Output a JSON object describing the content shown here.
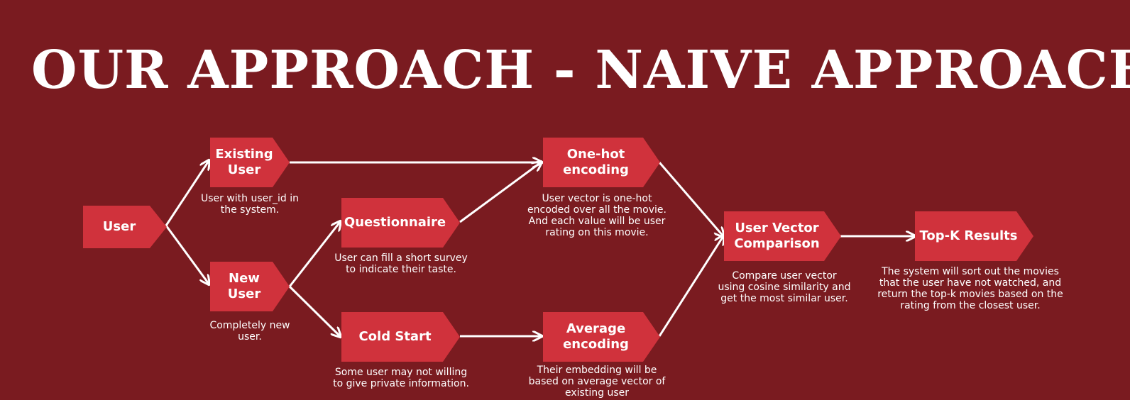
{
  "title": "OUR APPROACH - NAIVE APPROACH",
  "nodes": {
    "user": "User",
    "existing_user": "Existing\nUser",
    "new_user": "New\nUser",
    "questionnaire": "Questionnaire",
    "cold_start": "Cold Start",
    "one_hot": "One-hot\nencoding",
    "average": "Average\nencoding",
    "comparison": "User Vector\nComparison",
    "topk": "Top-K Results"
  },
  "captions": {
    "existing_user": "User with user_id in\nthe system.",
    "new_user": "Completely new\nuser.",
    "questionnaire": "User can fill a short survey\nto indicate their taste.",
    "cold_start": "Some user may not willing\nto give private information.",
    "one_hot": "User vector is one-hot\nencoded over all the movie.\nAnd each value will be user\nrating on this movie.",
    "average": "Their embedding will be\nbased on average vector of\nexisting user",
    "comparison": "Compare user vector\nusing cosine similarity and\nget the most similar user.",
    "topk": "The system will sort out the movies\nthat the user have not watched, and\nreturn the top-k movies based on the\nrating from the closest user."
  },
  "colors": {
    "background": "#7a1b20",
    "node": "#d0323c",
    "text": "#ffffff"
  }
}
